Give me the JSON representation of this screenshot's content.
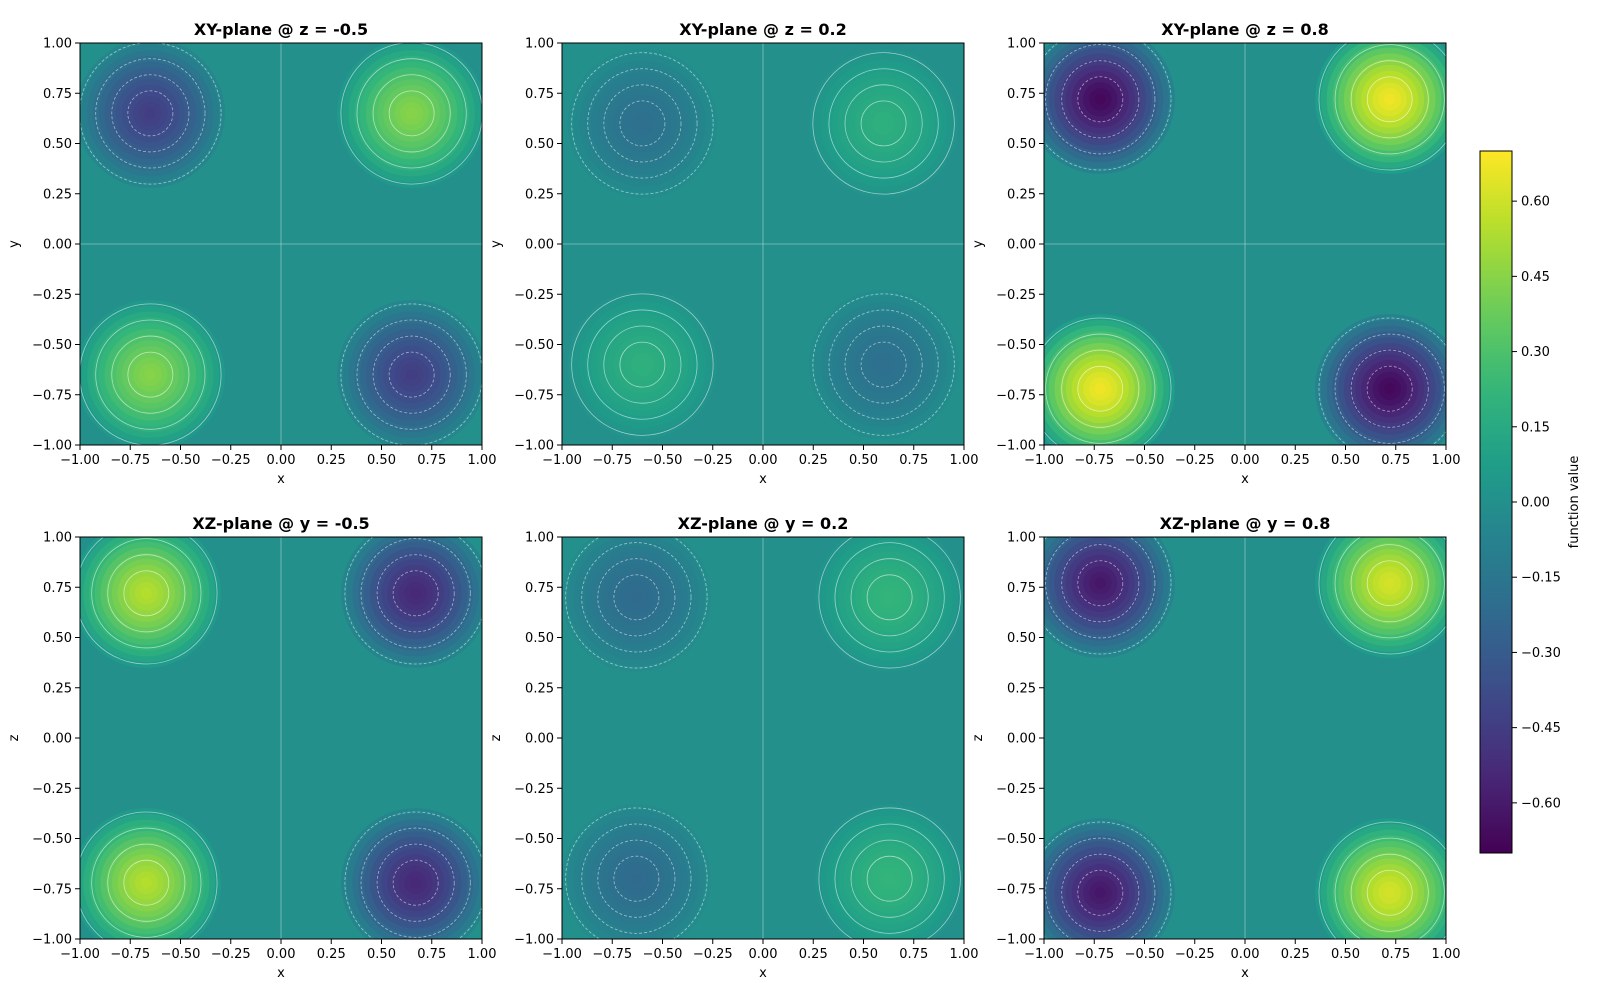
{
  "colors": {
    "colormap": "viridis",
    "contour_line": "#ffffff"
  },
  "chart_data": [
    {
      "type": "heatmap",
      "title": "XY-plane @ z = -0.5",
      "xlabel": "x",
      "ylabel": "y",
      "xlim": [
        -1,
        1
      ],
      "ylim": [
        -1,
        1
      ],
      "x_ticks": [
        "−1.00",
        "−0.75",
        "−0.50",
        "−0.25",
        "0.00",
        "0.25",
        "0.50",
        "0.75",
        "1.00"
      ],
      "y_ticks": [
        "−1.00",
        "−0.75",
        "−0.50",
        "−0.25",
        "0.00",
        "0.25",
        "0.50",
        "0.75",
        "1.00"
      ],
      "peaks": [
        {
          "x": -0.65,
          "y": 0.65,
          "value": -0.45
        },
        {
          "x": 0.65,
          "y": 0.65,
          "value": 0.45
        },
        {
          "x": -0.65,
          "y": -0.65,
          "value": 0.45
        },
        {
          "x": 0.65,
          "y": -0.65,
          "value": -0.45
        }
      ]
    },
    {
      "type": "heatmap",
      "title": "XY-plane @ z = 0.2",
      "xlabel": "x",
      "ylabel": "y",
      "xlim": [
        -1,
        1
      ],
      "ylim": [
        -1,
        1
      ],
      "x_ticks": [
        "−1.00",
        "−0.75",
        "−0.50",
        "−0.25",
        "0.00",
        "0.25",
        "0.50",
        "0.75",
        "1.00"
      ],
      "y_ticks": [
        "−1.00",
        "−0.75",
        "−0.50",
        "−0.25",
        "0.00",
        "0.25",
        "0.50",
        "0.75",
        "1.00"
      ],
      "peaks": [
        {
          "x": -0.6,
          "y": 0.6,
          "value": -0.19
        },
        {
          "x": 0.6,
          "y": 0.6,
          "value": 0.19
        },
        {
          "x": -0.6,
          "y": -0.6,
          "value": 0.19
        },
        {
          "x": 0.6,
          "y": -0.6,
          "value": -0.19
        }
      ]
    },
    {
      "type": "heatmap",
      "title": "XY-plane @ z = 0.8",
      "xlabel": "x",
      "ylabel": "y",
      "xlim": [
        -1,
        1
      ],
      "ylim": [
        -1,
        1
      ],
      "x_ticks": [
        "−1.00",
        "−0.75",
        "−0.50",
        "−0.25",
        "0.00",
        "0.25",
        "0.50",
        "0.75",
        "1.00"
      ],
      "y_ticks": [
        "−1.00",
        "−0.75",
        "−0.50",
        "−0.25",
        "0.00",
        "0.25",
        "0.50",
        "0.75",
        "1.00"
      ],
      "peaks": [
        {
          "x": -0.72,
          "y": 0.72,
          "value": -0.68
        },
        {
          "x": 0.72,
          "y": 0.72,
          "value": 0.68
        },
        {
          "x": -0.72,
          "y": -0.72,
          "value": 0.68
        },
        {
          "x": 0.72,
          "y": -0.72,
          "value": -0.68
        }
      ]
    },
    {
      "type": "heatmap",
      "title": "XZ-plane @ y = -0.5",
      "xlabel": "x",
      "ylabel": "z",
      "xlim": [
        -1,
        1
      ],
      "ylim": [
        -1,
        1
      ],
      "x_ticks": [
        "−1.00",
        "−0.75",
        "−0.50",
        "−0.25",
        "0.00",
        "0.25",
        "0.50",
        "0.75",
        "1.00"
      ],
      "y_ticks": [
        "−1.00",
        "−0.75",
        "−0.50",
        "−0.25",
        "0.00",
        "0.25",
        "0.50",
        "0.75",
        "1.00"
      ],
      "peaks": [
        {
          "x": -0.67,
          "y": 0.72,
          "value": 0.55
        },
        {
          "x": 0.67,
          "y": 0.72,
          "value": -0.55
        },
        {
          "x": -0.67,
          "y": -0.72,
          "value": 0.55
        },
        {
          "x": 0.67,
          "y": -0.72,
          "value": -0.55
        }
      ]
    },
    {
      "type": "heatmap",
      "title": "XZ-plane @ y = 0.2",
      "xlabel": "x",
      "ylabel": "z",
      "xlim": [
        -1,
        1
      ],
      "ylim": [
        -1,
        1
      ],
      "x_ticks": [
        "−1.00",
        "−0.75",
        "−0.50",
        "−0.25",
        "0.00",
        "0.25",
        "0.50",
        "0.75",
        "1.00"
      ],
      "y_ticks": [
        "−1.00",
        "−0.75",
        "−0.50",
        "−0.25",
        "0.00",
        "0.25",
        "0.50",
        "0.75",
        "1.00"
      ],
      "peaks": [
        {
          "x": -0.63,
          "y": 0.7,
          "value": -0.22
        },
        {
          "x": 0.63,
          "y": 0.7,
          "value": 0.22
        },
        {
          "x": -0.63,
          "y": -0.7,
          "value": -0.22
        },
        {
          "x": 0.63,
          "y": -0.7,
          "value": 0.22
        }
      ]
    },
    {
      "type": "heatmap",
      "title": "XZ-plane @ y = 0.8",
      "xlabel": "x",
      "ylabel": "z",
      "xlim": [
        -1,
        1
      ],
      "ylim": [
        -1,
        1
      ],
      "x_ticks": [
        "−1.00",
        "−0.75",
        "−0.50",
        "−0.25",
        "0.00",
        "0.25",
        "0.50",
        "0.75",
        "1.00"
      ],
      "y_ticks": [
        "−1.00",
        "−0.75",
        "−0.50",
        "−0.25",
        "0.00",
        "0.25",
        "0.50",
        "0.75",
        "1.00"
      ],
      "peaks": [
        {
          "x": -0.72,
          "y": 0.77,
          "value": -0.62
        },
        {
          "x": 0.72,
          "y": 0.77,
          "value": 0.62
        },
        {
          "x": -0.72,
          "y": -0.77,
          "value": -0.62
        },
        {
          "x": 0.72,
          "y": -0.77,
          "value": 0.62
        }
      ]
    }
  ],
  "colorbar": {
    "label": "function value",
    "range": [
      -0.7,
      0.7
    ],
    "ticks": [
      -0.6,
      -0.45,
      -0.3,
      -0.15,
      0.0,
      0.15,
      0.3,
      0.45,
      0.6
    ],
    "tick_labels": [
      "−0.60",
      "−0.45",
      "−0.30",
      "−0.15",
      "0.00",
      "0.15",
      "0.30",
      "0.45",
      "0.60"
    ]
  }
}
